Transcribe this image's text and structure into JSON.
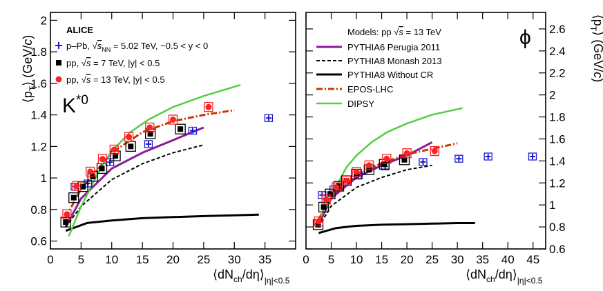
{
  "chart_data": [
    {
      "id": "kstar",
      "type": "scatter",
      "particle": "K*0",
      "experiment": "ALICE",
      "xlabel": "⟨dNch/dη⟩|η|<0.5",
      "ylabel": "⟨pT⟩ (GeV/c)",
      "xlim": [
        0,
        40
      ],
      "ylim": [
        0.55,
        2.05
      ],
      "xticks": [
        0,
        5,
        10,
        15,
        20,
        25,
        30,
        35
      ],
      "yticks": [
        0.6,
        0.8,
        1.0,
        1.2,
        1.4,
        1.6,
        1.8,
        2.0
      ],
      "ytick_labels": [
        "0.6",
        "0.8",
        "1",
        "1.2",
        "1.4",
        "1.6",
        "1.8",
        "2"
      ],
      "series": [
        {
          "name": "p–Pb, √sNN = 5.02 TeV, −0.5 < y < 0",
          "color": "#1a1acc",
          "marker": "plus",
          "x": [
            4.0,
            6.1,
            9.7,
            16.0,
            23.2,
            35.6
          ],
          "y": [
            0.945,
            0.965,
            1.1,
            1.215,
            1.3,
            1.38
          ]
        },
        {
          "name": "pp, √s = 7 TeV, |y| < 0.5",
          "color": "#000000",
          "marker": "square",
          "x": [
            2.5,
            3.8,
            5.3,
            6.9,
            8.4,
            10.6,
            13.1,
            16.3,
            21.2
          ],
          "y": [
            0.72,
            0.875,
            0.945,
            1.01,
            1.06,
            1.14,
            1.2,
            1.28,
            1.31
          ]
        },
        {
          "name": "pp, √s = 13 TeV, |y| < 0.5",
          "color": "#ff2222",
          "marker": "circle",
          "x": [
            2.7,
            4.3,
            6.5,
            8.5,
            10.4,
            12.8,
            16.2,
            20.0,
            25.8
          ],
          "y": [
            0.77,
            0.95,
            1.04,
            1.12,
            1.18,
            1.26,
            1.32,
            1.37,
            1.45
          ]
        }
      ],
      "models": [
        {
          "name": "PYTHIA6 Perugia 2011",
          "color": "#8b1a9b",
          "dash": "solid",
          "x": [
            2.5,
            5,
            10,
            15,
            20,
            25
          ],
          "y": [
            0.69,
            0.87,
            1.06,
            1.16,
            1.24,
            1.32
          ]
        },
        {
          "name": "PYTHIA8 Monash 2013",
          "color": "#000000",
          "dash": "dashed",
          "x": [
            2.5,
            5,
            10,
            15,
            20,
            25
          ],
          "y": [
            0.69,
            0.82,
            0.99,
            1.09,
            1.16,
            1.21
          ]
        },
        {
          "name": "PYTHIA8 Without CR",
          "color": "#000000",
          "dash": "solid",
          "x": [
            2.5,
            6,
            10,
            15,
            20,
            25,
            30,
            34
          ],
          "y": [
            0.665,
            0.715,
            0.73,
            0.745,
            0.752,
            0.758,
            0.763,
            0.768
          ]
        },
        {
          "name": "EPOS-LHC",
          "color": "#cc3300",
          "dash": "dashdot",
          "x": [
            2.5,
            5,
            10,
            15,
            20,
            25,
            30
          ],
          "y": [
            0.75,
            0.93,
            1.16,
            1.29,
            1.36,
            1.4,
            1.43
          ]
        },
        {
          "name": "DIPSY",
          "color": "#55cc44",
          "dash": "solid",
          "x": [
            3,
            5,
            8,
            10,
            13,
            16,
            20,
            25,
            31
          ],
          "y": [
            0.63,
            0.82,
            1.05,
            1.17,
            1.29,
            1.37,
            1.45,
            1.52,
            1.59
          ]
        }
      ]
    },
    {
      "id": "phi",
      "type": "scatter",
      "particle": "ϕ",
      "xlabel": "⟨dNch/dη⟩|η|<0.5",
      "ylabel": "⟨pT⟩ (GeV/c)",
      "xlim": [
        0,
        47.5
      ],
      "ylim": [
        0.6,
        2.75
      ],
      "xticks": [
        0,
        5,
        10,
        15,
        20,
        25,
        30,
        35,
        40,
        45
      ],
      "yticks": [
        0.6,
        0.8,
        1.0,
        1.2,
        1.4,
        1.6,
        1.8,
        2.0,
        2.2,
        2.4,
        2.6
      ],
      "ytick_labels": [
        "0.6",
        "0.8",
        "1",
        "1.2",
        "1.4",
        "1.6",
        "1.8",
        "2",
        "2.2",
        "2.4",
        "2.6"
      ],
      "series": [
        {
          "name": "p–Pb, √sNN = 5.02 TeV",
          "color": "#1a1acc",
          "marker": "plus",
          "x": [
            3.2,
            5.5,
            10.4,
            15.7,
            23.2,
            30.3,
            36.1,
            44.9
          ],
          "y": [
            1.09,
            1.14,
            1.27,
            1.35,
            1.39,
            1.42,
            1.44,
            1.44
          ]
        },
        {
          "name": "pp, √s = 7 TeV",
          "color": "#000000",
          "marker": "square",
          "x": [
            2.4,
            3.5,
            4.8,
            6.5,
            8.0,
            10.0,
            12.5,
            15.5,
            19.5
          ],
          "y": [
            0.82,
            0.98,
            1.1,
            1.17,
            1.22,
            1.28,
            1.32,
            1.37,
            1.41
          ]
        },
        {
          "name": "pp, √s = 13 TeV",
          "color": "#ff2222",
          "marker": "circle",
          "x": [
            2.5,
            4.0,
            6.0,
            8.0,
            10.0,
            12.5,
            16.0,
            20.0,
            25.5
          ],
          "y": [
            0.85,
            1.05,
            1.16,
            1.22,
            1.3,
            1.36,
            1.42,
            1.47,
            1.49
          ]
        }
      ],
      "models": [
        {
          "name": "PYTHIA6 Perugia 2011",
          "color": "#8b1a9b",
          "dash": "solid",
          "x": [
            2.5,
            5,
            10,
            15,
            20,
            25
          ],
          "y": [
            0.82,
            1.06,
            1.25,
            1.36,
            1.45,
            1.57
          ]
        },
        {
          "name": "PYTHIA8 Monash 2013",
          "color": "#000000",
          "dash": "dashed",
          "x": [
            2.5,
            5,
            10,
            15,
            20,
            25
          ],
          "y": [
            0.8,
            0.99,
            1.16,
            1.25,
            1.32,
            1.36
          ]
        },
        {
          "name": "PYTHIA8 Without CR",
          "color": "#000000",
          "dash": "solid",
          "x": [
            2.5,
            6,
            10,
            15,
            20,
            25,
            30,
            33.5
          ],
          "y": [
            0.745,
            0.79,
            0.81,
            0.82,
            0.825,
            0.83,
            0.835,
            0.835
          ]
        },
        {
          "name": "EPOS-LHC",
          "color": "#cc3300",
          "dash": "dashdot",
          "x": [
            2.5,
            5,
            10,
            15,
            20,
            25,
            30
          ],
          "y": [
            0.87,
            1.07,
            1.27,
            1.38,
            1.46,
            1.51,
            1.56
          ]
        },
        {
          "name": "DIPSY",
          "color": "#55cc44",
          "dash": "solid",
          "x": [
            3,
            5,
            8,
            10,
            13,
            16,
            20,
            25,
            31
          ],
          "y": [
            0.9,
            1.08,
            1.34,
            1.45,
            1.57,
            1.66,
            1.74,
            1.82,
            1.88
          ]
        }
      ]
    }
  ],
  "legend": {
    "experiment": "ALICE",
    "data": [
      {
        "pre": "p–Pb, ",
        "root": "s",
        "sub": "NN",
        "post": " = 5.02 TeV, −0.5 < y < 0"
      },
      {
        "pre": "pp, ",
        "root": "s",
        "sub": "",
        "post": " = 7 TeV, |y| < 0.5"
      },
      {
        "pre": "pp, ",
        "root": "s",
        "sub": "",
        "post": " = 13 TeV, |y| < 0.5"
      }
    ],
    "models_header": {
      "pre": "Models: pp ",
      "root": "s",
      "post": " = 13 TeV"
    },
    "models": [
      "PYTHIA6 Perugia 2011",
      "PYTHIA8 Monash 2013",
      "PYTHIA8 Without CR",
      "EPOS-LHC",
      "DIPSY"
    ]
  },
  "labels": {
    "x_main": "⟨dN",
    "x_ch": "ch",
    "x_rest": "/dη⟩",
    "x_sub": "|η|<0.5",
    "y_left_main": "⟨p",
    "y_sub": "T",
    "y_rest": "⟩ (GeV/",
    "y_c": "c",
    "y_close": ")",
    "kstar_base": "K",
    "kstar_sup": "*0",
    "phi_symbol": "ϕ"
  }
}
